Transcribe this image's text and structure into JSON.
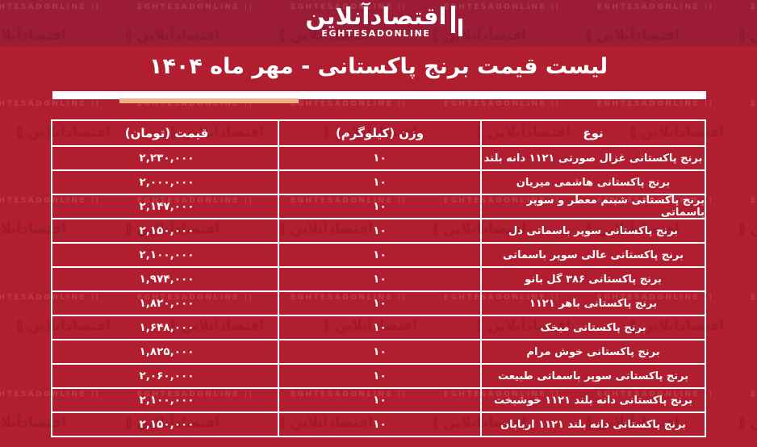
{
  "brand": {
    "logo_persian": "اقتصادآنلاین",
    "logo_latin": "EGHTESADONLINE"
  },
  "watermark": {
    "persian_mark": "اقتصادآنلاین ‖",
    "latin_mark": "EGHTESADONLINE ||"
  },
  "title": "لیست قیمت برنج پاکستانی - مهر ماه ۱۴۰۴",
  "colors": {
    "body_background": "#b11e30",
    "band_background": "#9c1c36",
    "accent_underline": "#f2b184",
    "table_border": "#ffffff",
    "text": "#ffffff"
  },
  "chart_data": {
    "type": "table",
    "title": "لیست قیمت برنج پاکستانی - مهر ماه ۱۴۰۴",
    "columns": [
      "نوع",
      "وزن (کیلوگرم)",
      "قیمت (تومان)"
    ],
    "rows": [
      {
        "type": "برنج پاکستانی غزال صورتی ۱۱۲۱ دانه بلند",
        "weight": "۱۰",
        "price": "۲,۲۳۰,۰۰۰",
        "weight_kg": 10,
        "price_toman": 2230000
      },
      {
        "type": "برنج پاکستانی هاشمی میریان",
        "weight": "۱۰",
        "price": "۲,۰۰۰,۰۰۰",
        "weight_kg": 10,
        "price_toman": 2000000
      },
      {
        "type": "برنج پاکستانی شبنم معطر و سوپر باسماتی",
        "weight": "۱۰",
        "price": "۲,۱۴۷,۰۰۰",
        "weight_kg": 10,
        "price_toman": 2147000
      },
      {
        "type": "برنج پاکستانی سوپر باسماتی دل",
        "weight": "۱۰",
        "price": "۲,۱۵۰,۰۰۰",
        "weight_kg": 10,
        "price_toman": 2150000
      },
      {
        "type": "برنج پاکستانی عالی سوپر باسماتی",
        "weight": "۱۰",
        "price": "۲,۱۰۰,۰۰۰",
        "weight_kg": 10,
        "price_toman": 2100000
      },
      {
        "type": "برنج پاکستانی ۳۸۶ گل بانو",
        "weight": "۱۰",
        "price": "۱,۹۷۴,۰۰۰",
        "weight_kg": 10,
        "price_toman": 1974000
      },
      {
        "type": "برنج پاکستانی باهر ۱۱۲۱",
        "weight": "۱۰",
        "price": "۱,۸۲۰,۰۰۰",
        "weight_kg": 10,
        "price_toman": 1820000
      },
      {
        "type": "برنج پاکستانی میخک",
        "weight": "۱۰",
        "price": "۱,۶۴۸,۰۰۰",
        "weight_kg": 10,
        "price_toman": 1648000
      },
      {
        "type": "برنج پاکستانی خوش مرام",
        "weight": "۱۰",
        "price": "۱,۸۲۵,۰۰۰",
        "weight_kg": 10,
        "price_toman": 1825000
      },
      {
        "type": "برنج پاکستانی سوپر باسماتی طبیعت",
        "weight": "۱۰",
        "price": "۲,۰۶۰,۰۰۰",
        "weight_kg": 10,
        "price_toman": 2060000
      },
      {
        "type": "برنج پاکستانی دانه بلند ۱۱۲۱ خوشبخت",
        "weight": "۱۰",
        "price": "۲,۱۰۰,۰۰۰",
        "weight_kg": 10,
        "price_toman": 2100000
      },
      {
        "type": "برنج پاکستانی دانه بلند ۱۱۲۱ اربابان",
        "weight": "۱۰",
        "price": "۲,۱۵۰,۰۰۰",
        "weight_kg": 10,
        "price_toman": 2150000
      }
    ]
  }
}
